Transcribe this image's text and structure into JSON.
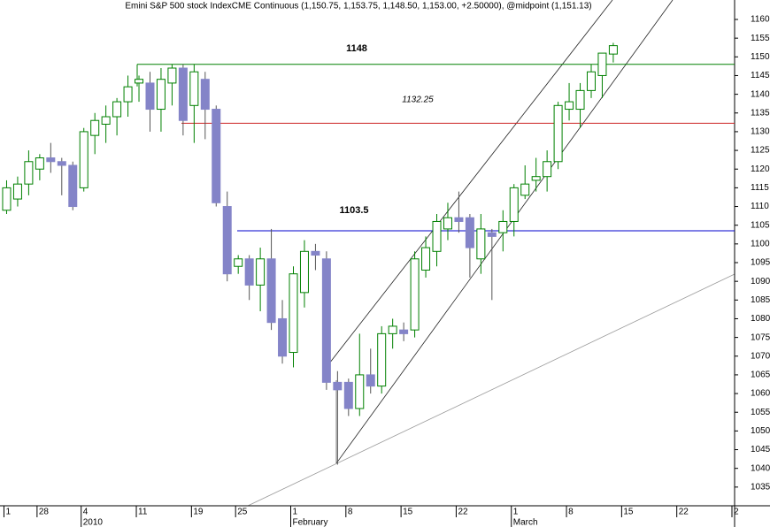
{
  "chart_data": {
    "type": "candlestick",
    "title": "Emini S&P 500 stock IndexCME Continuous (1,150.75, 1,153.75, 1,148.50, 1,153.00, +2.50000), @midpoint (1,151.13)",
    "categories": [
      null,
      null,
      null,
      null,
      null,
      null,
      null,
      null,
      null,
      null,
      null,
      null,
      null,
      null,
      null,
      null,
      null,
      null,
      null,
      null,
      null,
      null,
      null,
      null,
      null,
      null,
      null,
      null,
      null,
      null,
      null,
      null,
      null,
      null,
      null,
      null,
      null,
      null,
      null,
      null,
      null,
      null,
      null,
      null,
      null,
      null,
      null,
      null,
      null,
      null,
      null,
      null,
      null,
      null,
      null,
      null
    ],
    "open": [
      1109,
      1112,
      1116,
      1120,
      1123,
      1122,
      1121,
      1115,
      1129,
      1132,
      1134,
      1138,
      1143,
      1143,
      1136,
      1143,
      1147,
      1137,
      1144,
      1136,
      1110,
      1094,
      1096,
      1089,
      1096,
      1080,
      1071,
      1087,
      1098,
      1096,
      1063,
      1063,
      1056,
      1065,
      1062,
      1076,
      1077,
      1077,
      1093,
      1098,
      1104,
      1107,
      1107,
      1096,
      1103,
      1103,
      1106,
      1113,
      1117,
      1118,
      1122,
      1136,
      1136,
      1141,
      1145,
      1150.75
    ],
    "high": [
      1117,
      1118,
      1125,
      1124,
      1127,
      1123,
      1122,
      1131,
      1135,
      1137,
      1139,
      1145,
      1145,
      1146,
      1147,
      1148,
      1148,
      1148,
      1146,
      1137,
      1114,
      1097,
      1097,
      1099,
      1104,
      1085,
      1094,
      1101,
      1100,
      1098,
      1066,
      1064,
      1076,
      1072,
      1078,
      1080,
      1079,
      1098,
      1102,
      1108,
      1111,
      1114,
      1108,
      1108,
      1104,
      1109,
      1116,
      1121,
      1123,
      1125,
      1138,
      1143,
      1143,
      1148,
      1151,
      1153.75
    ],
    "low": [
      1108,
      1110,
      1113,
      1117,
      1119,
      1113,
      1109,
      1114,
      1124,
      1127,
      1129,
      1134,
      1138,
      1130,
      1130,
      1137,
      1129,
      1127,
      1128,
      1110,
      1090,
      1092,
      1085,
      1082,
      1077,
      1068,
      1067,
      1083,
      1093,
      1061,
      1041,
      1054,
      1054,
      1060,
      1060,
      1072,
      1074,
      1075,
      1091,
      1094,
      1101,
      1103,
      1091,
      1092,
      1085,
      1098,
      1102,
      1112,
      1114,
      1114,
      1120,
      1133,
      1131,
      1139,
      1139,
      1148.5
    ],
    "close": [
      1115,
      1116,
      1122,
      1123,
      1122,
      1121,
      1110,
      1130,
      1133,
      1134,
      1138,
      1142,
      1144,
      1136,
      1144,
      1147,
      1133,
      1146,
      1136,
      1111,
      1092,
      1096,
      1089,
      1096,
      1079,
      1070,
      1092,
      1098,
      1097,
      1063,
      1061,
      1056,
      1065,
      1062,
      1076,
      1078,
      1076,
      1096,
      1099,
      1106,
      1107,
      1106,
      1099,
      1104,
      1102,
      1106,
      1115,
      1116,
      1118,
      1122,
      1137,
      1138,
      1141,
      1146,
      1151,
      1153
    ],
    "up_color": "#008000",
    "down_color": "#8484c8",
    "levels": [
      {
        "value": 1148,
        "color": "#008000"
      },
      {
        "value": 1132.25,
        "color": "#cc2222"
      },
      {
        "value": 1103.5,
        "color": "#0000cc"
      }
    ],
    "xlim": [
      -0.6,
      66
    ],
    "xticks": [
      {
        "value": 0,
        "label": "1"
      },
      {
        "value": 3,
        "label": "28"
      },
      {
        "value": 7,
        "label": "4"
      },
      {
        "value": 12,
        "label": "11"
      },
      {
        "value": 17,
        "label": "19"
      },
      {
        "value": 21,
        "label": "25"
      },
      {
        "value": 26,
        "label": "1"
      },
      {
        "value": 31,
        "label": "8"
      },
      {
        "value": 36,
        "label": "15"
      },
      {
        "value": 41,
        "label": "22"
      },
      {
        "value": 46,
        "label": "1"
      },
      {
        "value": 51,
        "label": "8"
      },
      {
        "value": 56,
        "label": "15"
      },
      {
        "value": 61,
        "label": "22"
      },
      {
        "value": 66,
        "label": "2"
      }
    ],
    "xperiods": [
      {
        "value": 7,
        "label": "2010"
      },
      {
        "value": 26,
        "label": "February"
      },
      {
        "value": 46,
        "label": "March"
      }
    ],
    "ylim": [
      1030,
      1165.2
    ],
    "yticks": [
      1035,
      1040,
      1045,
      1050,
      1055,
      1060,
      1065,
      1070,
      1075,
      1080,
      1085,
      1090,
      1095,
      1100,
      1105,
      1110,
      1115,
      1120,
      1125,
      1130,
      1135,
      1140,
      1145,
      1150,
      1155,
      1160
    ]
  }
}
